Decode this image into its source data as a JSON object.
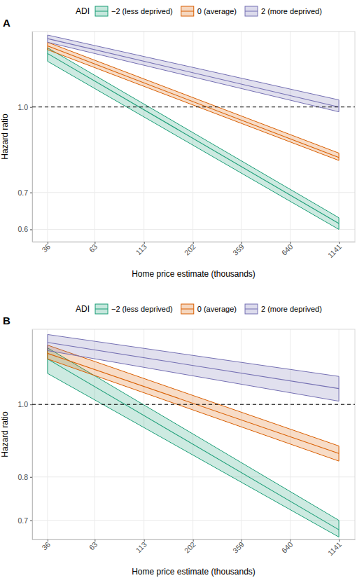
{
  "chart_data": [
    {
      "type": "line",
      "title": "A",
      "x_label": "Home price estimate (thousands)",
      "y_label": "Hazard ratio",
      "legend_title": "ADI",
      "legend": "top",
      "log": true,
      "grid": true,
      "xlim": [
        30,
        1380
      ],
      "xticks": [
        36,
        63,
        113,
        202,
        359,
        640,
        1141
      ],
      "ylim": [
        0.57,
        1.37
      ],
      "yticks": [
        0.6,
        0.7,
        {
          "value": 1,
          "label": "1.0"
        }
      ],
      "reference_line": 1,
      "x": [
        36,
        1141
      ],
      "series": [
        {
          "name": "−2 (less deprived)",
          "color": "#1b9e77",
          "values": [
            1.25,
            0.615
          ],
          "lower": [
            1.21,
            0.6
          ],
          "upper": [
            1.28,
            0.63
          ]
        },
        {
          "name": "0 (average)",
          "color": "#d95f02",
          "values": [
            1.29,
            0.81
          ],
          "lower": [
            1.27,
            0.8
          ],
          "upper": [
            1.31,
            0.825
          ]
        },
        {
          "name": "2 (more deprived)",
          "color": "#7570b3",
          "values": [
            1.33,
            1.0
          ],
          "lower": [
            1.31,
            0.98
          ],
          "upper": [
            1.35,
            1.03
          ]
        }
      ]
    },
    {
      "type": "line",
      "title": "B",
      "x_label": "Home price estimate (thousands)",
      "y_label": "Hazard ratio",
      "legend_title": "ADI",
      "legend": "top",
      "log": true,
      "grid": true,
      "xlim": [
        30,
        1380
      ],
      "xticks": [
        36,
        63,
        113,
        202,
        359,
        640,
        1141
      ],
      "ylim": [
        0.66,
        1.26
      ],
      "yticks": [
        0.7,
        0.8,
        {
          "value": 1,
          "label": "1.0"
        }
      ],
      "reference_line": 1,
      "x": [
        36,
        1141
      ],
      "series": [
        {
          "name": "−2 (less deprived)",
          "color": "#1b9e77",
          "values": [
            1.15,
            0.68
          ],
          "lower": [
            1.1,
            0.665
          ],
          "upper": [
            1.19,
            0.7
          ]
        },
        {
          "name": "0 (average)",
          "color": "#d95f02",
          "values": [
            1.17,
            0.86
          ],
          "lower": [
            1.15,
            0.84
          ],
          "upper": [
            1.2,
            0.88
          ]
        },
        {
          "name": "2 (more deprived)",
          "color": "#7570b3",
          "values": [
            1.21,
            1.05
          ],
          "lower": [
            1.18,
            1.01
          ],
          "upper": [
            1.24,
            1.09
          ]
        }
      ]
    }
  ]
}
